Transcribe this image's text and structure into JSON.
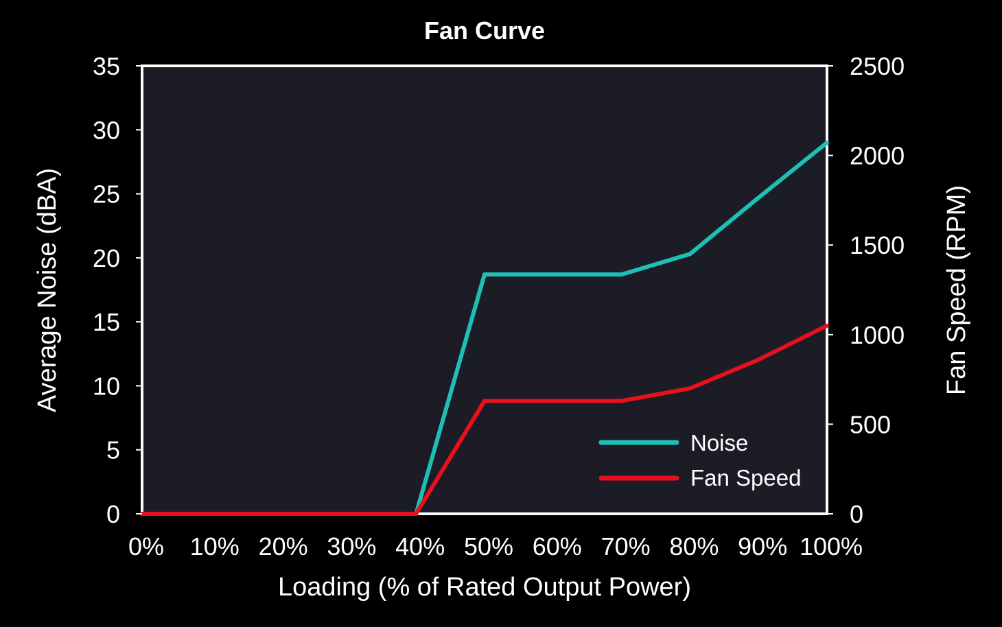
{
  "chart_data": {
    "type": "line",
    "title": "Fan Curve",
    "xlabel": "Loading (% of Rated Output Power)",
    "ylabel": "Average Noise (dBA)",
    "y2label": "Fan Speed (RPM)",
    "categories": [
      "0%",
      "10%",
      "20%",
      "30%",
      "40%",
      "50%",
      "60%",
      "70%",
      "80%",
      "90%",
      "100%"
    ],
    "x": [
      0,
      10,
      20,
      30,
      40,
      50,
      60,
      70,
      80,
      90,
      100
    ],
    "ylim": [
      0,
      35
    ],
    "y2lim": [
      0,
      2500
    ],
    "yticks": [
      "0",
      "5",
      "10",
      "15",
      "20",
      "25",
      "30",
      "35"
    ],
    "y2ticks": [
      "0",
      "500",
      "1000",
      "1500",
      "2000",
      "2500"
    ],
    "grid": false,
    "legend_position": "bottom-right",
    "series": [
      {
        "name": "Noise",
        "axis": "left",
        "color": "#1cc0b4",
        "values": [
          0,
          0,
          0,
          0,
          0,
          18.7,
          18.7,
          18.7,
          20.3,
          24.7,
          29.0
        ]
      },
      {
        "name": "Fan Speed",
        "axis": "right",
        "color": "#e8101c",
        "values": [
          0,
          0,
          0,
          0,
          0,
          630,
          630,
          630,
          700,
          860,
          1050
        ]
      }
    ],
    "colors": {
      "background": "#000000",
      "plot_area": "#1c1c26",
      "frame": "#ffffff"
    }
  }
}
